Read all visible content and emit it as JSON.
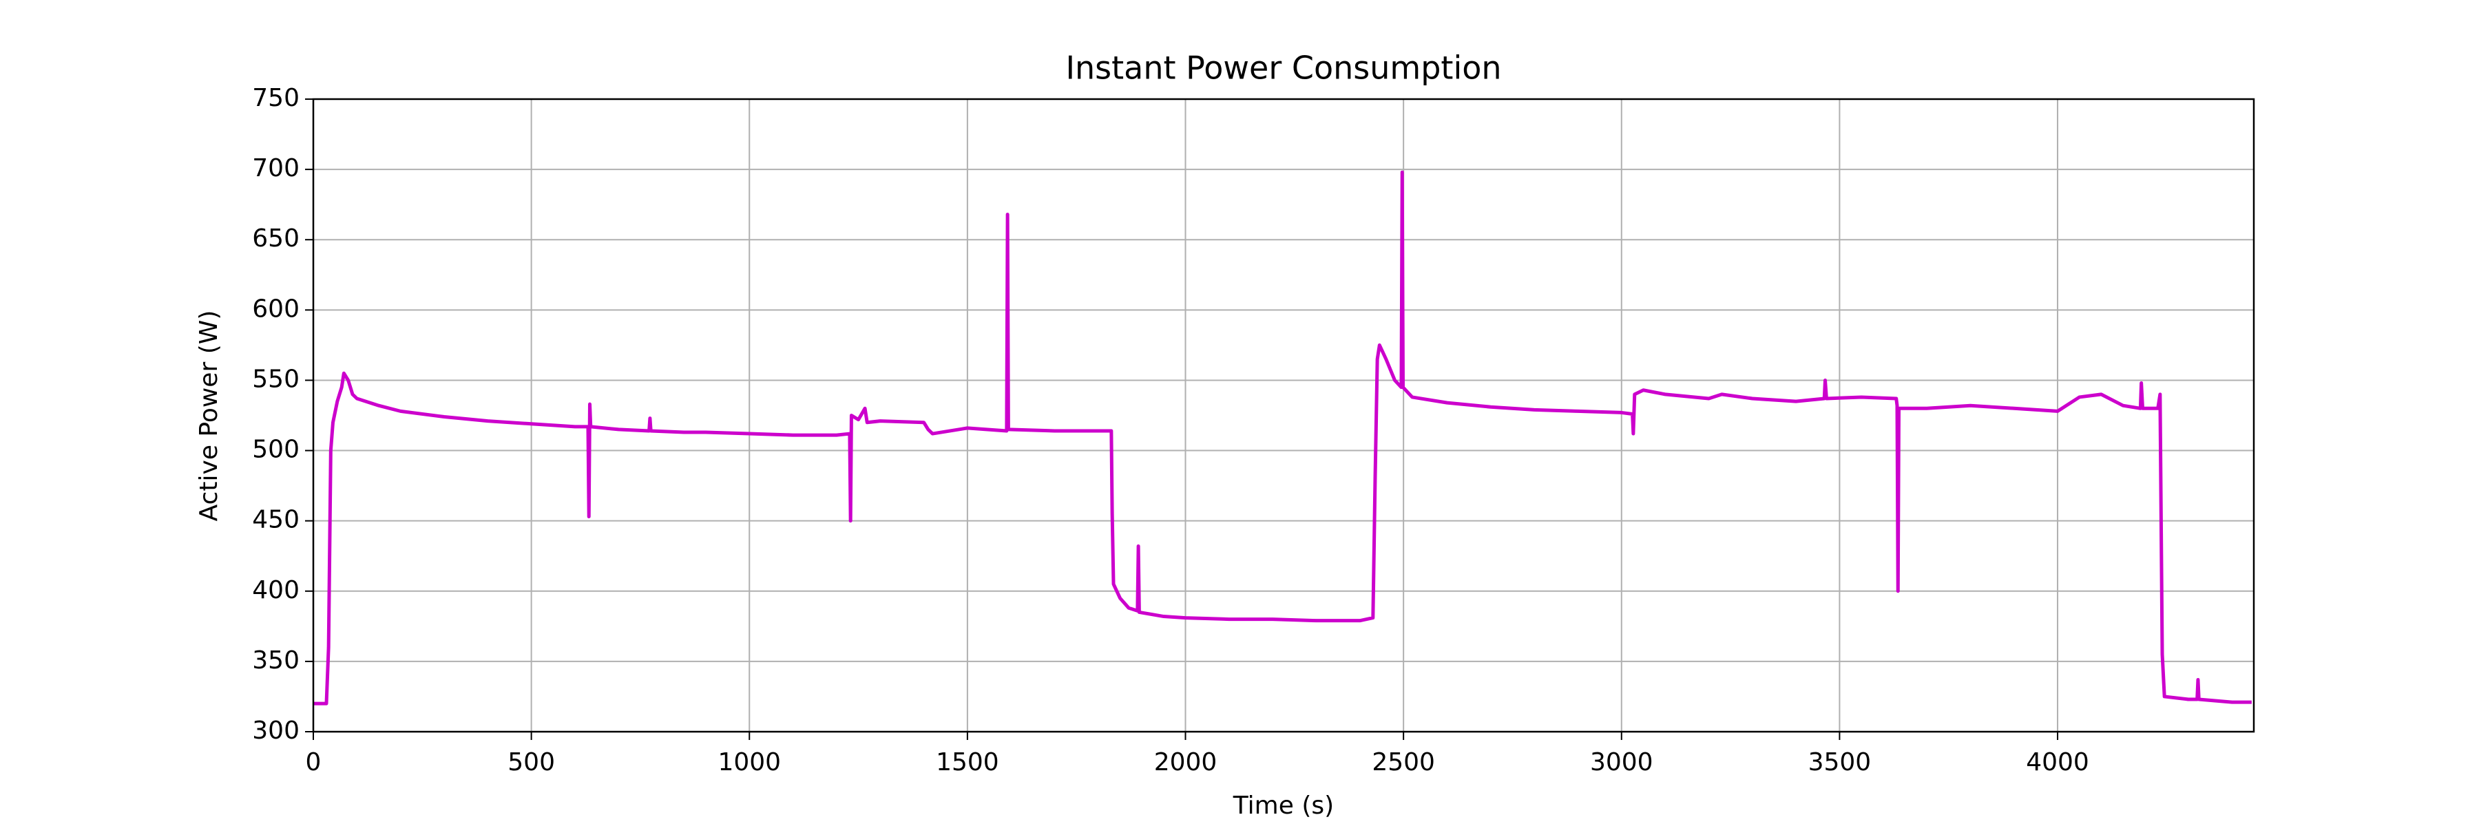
{
  "chart_data": {
    "type": "line",
    "title": "Instant Power Consumption",
    "x_label": "Time (s)",
    "y_label": "Active Power (W)",
    "x": [
      0,
      30,
      35,
      40,
      45,
      55,
      65,
      70,
      80,
      90,
      100,
      150,
      200,
      300,
      400,
      500,
      600,
      630,
      632,
      634,
      636,
      700,
      770,
      772,
      774,
      850,
      900,
      1000,
      1100,
      1200,
      1230,
      1232,
      1234,
      1250,
      1265,
      1270,
      1300,
      1400,
      1410,
      1420,
      1500,
      1590,
      1592,
      1594,
      1700,
      1830,
      1832,
      1835,
      1850,
      1870,
      1890,
      1892,
      1894,
      1950,
      2000,
      2100,
      2200,
      2300,
      2400,
      2430,
      2435,
      2440,
      2445,
      2460,
      2480,
      2495,
      2497,
      2499,
      2520,
      2600,
      2700,
      2800,
      2900,
      3000,
      3025,
      3027,
      3030,
      3050,
      3100,
      3200,
      3230,
      3300,
      3400,
      3465,
      3467,
      3470,
      3550,
      3630,
      3632,
      3634,
      3636,
      3700,
      3800,
      3900,
      4000,
      4050,
      4100,
      4150,
      4190,
      4192,
      4195,
      4230,
      4235,
      4240,
      4245,
      4300,
      4320,
      4322,
      4324,
      4400,
      4445
    ],
    "series": [
      {
        "name": "Active Power",
        "color": "#cc00cc",
        "values": [
          320,
          320,
          360,
          500,
          520,
          535,
          545,
          555,
          550,
          540,
          537,
          532,
          528,
          524,
          521,
          519,
          517,
          517,
          453,
          533,
          517,
          515,
          514,
          523,
          514,
          513,
          513,
          512,
          511,
          511,
          512,
          450,
          525,
          522,
          530,
          520,
          521,
          520,
          515,
          512,
          516,
          514,
          668,
          515,
          514,
          514,
          455,
          405,
          395,
          388,
          386,
          432,
          385,
          382,
          381,
          380,
          380,
          379,
          379,
          381,
          480,
          565,
          575,
          565,
          550,
          545,
          698,
          545,
          538,
          534,
          531,
          529,
          528,
          527,
          526,
          512,
          540,
          543,
          540,
          537,
          540,
          537,
          535,
          537,
          550,
          537,
          538,
          537,
          532,
          400,
          530,
          530,
          532,
          530,
          528,
          538,
          540,
          532,
          530,
          548,
          530,
          530,
          540,
          355,
          325,
          323,
          323,
          337,
          323,
          321,
          321
        ]
      }
    ],
    "xlim": [
      0,
      4450
    ],
    "ylim": [
      300,
      750
    ],
    "xticks": [
      0,
      500,
      1000,
      1500,
      2000,
      2500,
      3000,
      3500,
      4000
    ],
    "yticks": [
      300,
      350,
      400,
      450,
      500,
      550,
      600,
      650,
      700,
      750
    ],
    "grid": true
  }
}
